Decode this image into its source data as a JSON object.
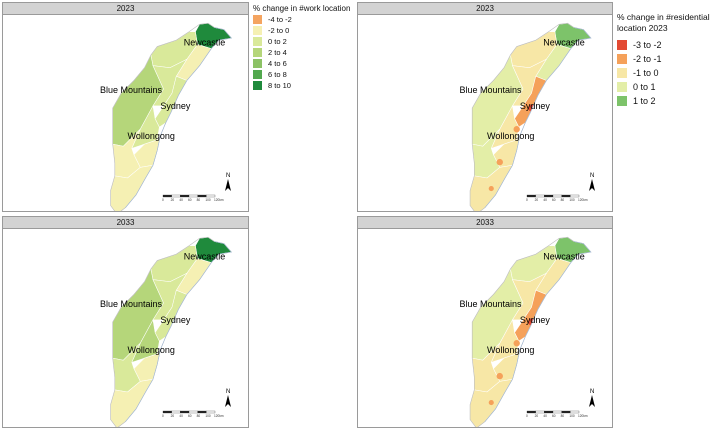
{
  "panels": [
    {
      "title": "2023",
      "variant": "work"
    },
    {
      "title": "2023",
      "variant": "res"
    },
    {
      "title": "2033",
      "variant": "work"
    },
    {
      "title": "2033",
      "variant": "res"
    }
  ],
  "cities": {
    "newcastle": "Newcastle",
    "blue_mountains": "Blue Mountains",
    "sydney": "Sydney",
    "wollongong": "Wollongong"
  },
  "scale_bar": {
    "ticks": [
      "0",
      "20",
      "40",
      "60",
      "80",
      "100",
      "120km"
    ]
  },
  "north_arrow": "N",
  "legend_work": {
    "title": "% change in #work location",
    "items": [
      {
        "label": "-4 to -2",
        "color": "#f4a460"
      },
      {
        "label": "-2 to 0",
        "color": "#f5f0b3"
      },
      {
        "label": "0 to 2",
        "color": "#d9e99a"
      },
      {
        "label": "2 to 4",
        "color": "#b5d67a"
      },
      {
        "label": "4 to 6",
        "color": "#8cc265"
      },
      {
        "label": "6 to 8",
        "color": "#52a84e"
      },
      {
        "label": "8 to 10",
        "color": "#1f8a3c"
      }
    ]
  },
  "legend_res": {
    "title_line1": "% change in #residential",
    "title_line2": "location 2023",
    "items": [
      {
        "label": "-3 to -2",
        "color": "#e34a33"
      },
      {
        "label": "-2 to -1",
        "color": "#f5a15a"
      },
      {
        "label": "-1 to 0",
        "color": "#f7e7a6"
      },
      {
        "label": "0 to 1",
        "color": "#e3eea7"
      },
      {
        "label": "1 to 2",
        "color": "#7dc36a"
      }
    ]
  }
}
